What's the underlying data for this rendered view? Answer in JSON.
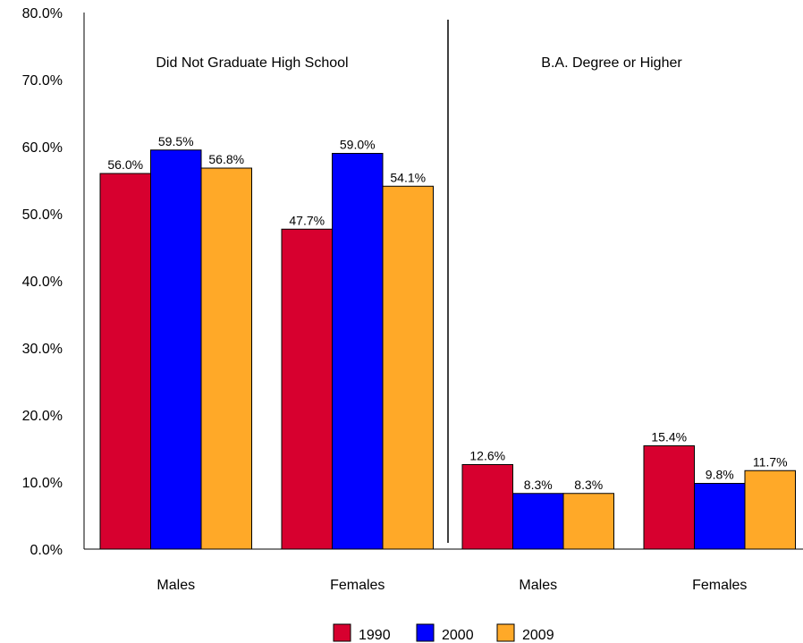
{
  "chart_data": {
    "type": "bar",
    "ylim": [
      0,
      80
    ],
    "yticks": [
      {
        "value": 0,
        "label": "0.0%"
      },
      {
        "value": 10,
        "label": "10.0%"
      },
      {
        "value": 20,
        "label": "20.0%"
      },
      {
        "value": 30,
        "label": "30.0%"
      },
      {
        "value": 40,
        "label": "40.0%"
      },
      {
        "value": 50,
        "label": "50.0%"
      },
      {
        "value": 60,
        "label": "60.0%"
      },
      {
        "value": 70,
        "label": "70.0%"
      },
      {
        "value": 80,
        "label": "80.0%"
      }
    ],
    "grid": false,
    "legend_position": "bottom",
    "series_names": [
      "1990",
      "2000",
      "2009"
    ],
    "colors": [
      "#d7002f",
      "#0000ff",
      "#ffa928"
    ],
    "panels": [
      {
        "title": "Did Not Graduate High School",
        "categories": [
          "Males",
          "Females"
        ],
        "values": [
          [
            56.0,
            59.5,
            56.8
          ],
          [
            47.7,
            59.0,
            54.1
          ]
        ],
        "labels": [
          [
            "56.0%",
            "59.5%",
            "56.8%"
          ],
          [
            "47.7%",
            "59.0%",
            "54.1%"
          ]
        ]
      },
      {
        "title": "B.A. Degree or Higher",
        "categories": [
          "Males",
          "Females"
        ],
        "values": [
          [
            12.6,
            8.3,
            8.3
          ],
          [
            15.4,
            9.8,
            11.7
          ]
        ],
        "labels": [
          [
            "12.6%",
            "8.3%",
            "8.3%"
          ],
          [
            "15.4%",
            "9.8%",
            "11.7%"
          ]
        ]
      }
    ]
  }
}
